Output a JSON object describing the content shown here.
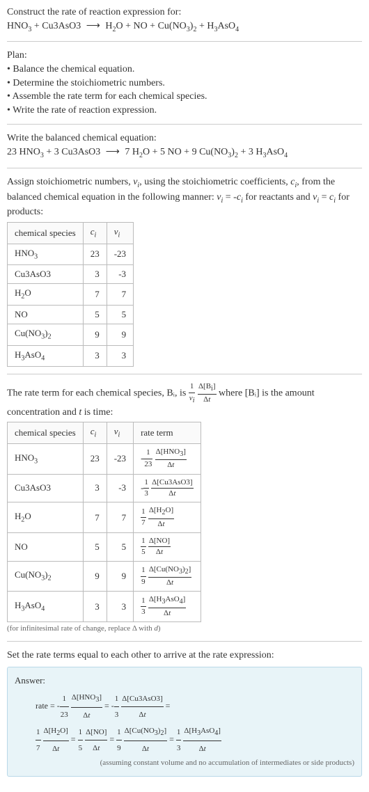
{
  "header": {
    "prompt": "Construct the rate of reaction expression for:",
    "equation_left": "HNO₃ + Cu3AsO3",
    "equation_right": "H₂O + NO + Cu(NO₃)₂ + H₃AsO₄"
  },
  "plan": {
    "title": "Plan:",
    "items": [
      "Balance the chemical equation.",
      "Determine the stoichiometric numbers.",
      "Assemble the rate term for each chemical species.",
      "Write the rate of reaction expression."
    ]
  },
  "balanced": {
    "title": "Write the balanced chemical equation:",
    "left": "23 HNO₃ + 3 Cu3AsO3",
    "right": "7 H₂O + 5 NO + 9 Cu(NO₃)₂ + 3 H₃AsO₄"
  },
  "stoich_intro": "Assign stoichiometric numbers, νᵢ, using the stoichiometric coefficients, cᵢ, from the balanced chemical equation in the following manner: νᵢ = -cᵢ for reactants and νᵢ = cᵢ for products:",
  "stoich_table": {
    "cols": [
      "chemical species",
      "cᵢ",
      "νᵢ"
    ],
    "rows": [
      {
        "sp": "HNO₃",
        "c": "23",
        "v": "-23"
      },
      {
        "sp": "Cu3AsO3",
        "c": "3",
        "v": "-3"
      },
      {
        "sp": "H₂O",
        "c": "7",
        "v": "7"
      },
      {
        "sp": "NO",
        "c": "5",
        "v": "5"
      },
      {
        "sp": "Cu(NO₃)₂",
        "c": "9",
        "v": "9"
      },
      {
        "sp": "H₃AsO₄",
        "c": "3",
        "v": "3"
      }
    ]
  },
  "rate_term_intro_a": "The rate term for each chemical species, Bᵢ, is ",
  "rate_term_intro_b": " where [Bᵢ] is the amount concentration and ",
  "rate_term_intro_c": " is time:",
  "rate_table": {
    "cols": [
      "chemical species",
      "cᵢ",
      "νᵢ",
      "rate term"
    ],
    "rows": [
      {
        "sp": "HNO₃",
        "c": "23",
        "v": "-23",
        "sign": "-",
        "coef": "23",
        "delta": "Δ[HNO₃]"
      },
      {
        "sp": "Cu3AsO3",
        "c": "3",
        "v": "-3",
        "sign": "-",
        "coef": "3",
        "delta": "Δ[Cu3AsO3]"
      },
      {
        "sp": "H₂O",
        "c": "7",
        "v": "7",
        "sign": "",
        "coef": "7",
        "delta": "Δ[H₂O]"
      },
      {
        "sp": "NO",
        "c": "5",
        "v": "5",
        "sign": "",
        "coef": "5",
        "delta": "Δ[NO]"
      },
      {
        "sp": "Cu(NO₃)₂",
        "c": "9",
        "v": "9",
        "sign": "",
        "coef": "9",
        "delta": "Δ[Cu(NO₃)₂]"
      },
      {
        "sp": "H₃AsO₄",
        "c": "3",
        "v": "3",
        "sign": "",
        "coef": "3",
        "delta": "Δ[H₃AsO₄]"
      }
    ]
  },
  "rate_note": "(for infinitesimal rate of change, replace Δ with d)",
  "final_intro": "Set the rate terms equal to each other to arrive at the rate expression:",
  "answer": {
    "label": "Answer:",
    "terms": [
      {
        "sign": "-",
        "coef": "23",
        "delta": "Δ[HNO₃]"
      },
      {
        "sign": "-",
        "coef": "3",
        "delta": "Δ[Cu3AsO3]"
      },
      {
        "sign": "",
        "coef": "7",
        "delta": "Δ[H₂O]"
      },
      {
        "sign": "",
        "coef": "5",
        "delta": "Δ[NO]"
      },
      {
        "sign": "",
        "coef": "9",
        "delta": "Δ[Cu(NO₃)₂]"
      },
      {
        "sign": "",
        "coef": "3",
        "delta": "Δ[H₃AsO₄]"
      }
    ],
    "note": "(assuming constant volume and no accumulation of intermediates or side products)"
  },
  "colors": {
    "text": "#333333",
    "border": "#bbbbbb",
    "hr": "#cccccc",
    "answer_bg": "#e8f4f8",
    "answer_border": "#b8d8e8",
    "note": "#666666"
  }
}
